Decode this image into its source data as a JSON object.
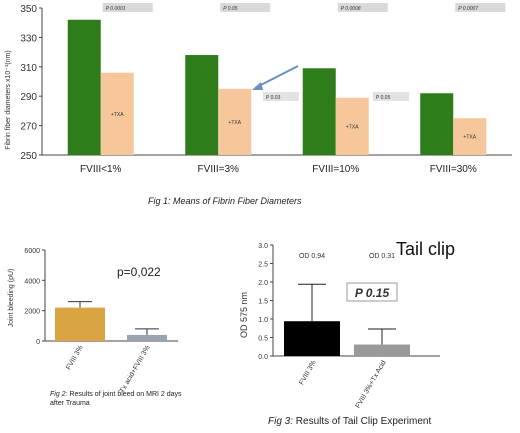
{
  "chart_data": [
    {
      "type": "bar",
      "categories": [
        "FVIII<1%",
        "FVIII=3%",
        "FVIII=10%",
        "FVIII=30%"
      ],
      "series": [
        {
          "values": [
            342,
            318,
            309,
            292
          ],
          "color": "#2e7d1a"
        },
        {
          "values": [
            306,
            295,
            289,
            275
          ],
          "color": "#f5c79a",
          "bar_label": "+TXA"
        }
      ],
      "ylabel": "Fibrin fiber diameters x10⁻³(nm)",
      "yticks": [
        250,
        270,
        290,
        310,
        330,
        350
      ],
      "ylim": [
        250,
        350
      ],
      "p_values": [
        "P 0.0001",
        "P 0.05",
        "P 0.0008",
        "P 0.0007"
      ],
      "extra_p_labels": [
        "P 0.03",
        "P 0.05"
      ],
      "caption_prefix": "Fig 1:",
      "caption_text": " Means of Fibrin Fiber Diameters"
    },
    {
      "type": "bar",
      "categories": [
        "FVIII 3%",
        "Tx acid+FVIII 3%"
      ],
      "values": [
        2200,
        400
      ],
      "errors": [
        2600,
        800
      ],
      "colors": [
        "#d9a441",
        "#9aa3ae"
      ],
      "ylabel": "Joint bleeding (pU)",
      "yticks": [
        0,
        2000,
        4000,
        6000
      ],
      "ylim": [
        0,
        6000
      ],
      "annotation": "p=0,022",
      "caption_prefix": "Fig 2:",
      "caption_text": " Results of joint bleed on MRI 2 days",
      "caption_line2": "after Trauma"
    },
    {
      "type": "bar",
      "title": "Tail clip",
      "categories": [
        "FVIII 3%",
        "FVIII 3%+Tx Acid"
      ],
      "values": [
        0.94,
        0.31
      ],
      "errors": [
        1.0,
        0.42
      ],
      "colors": [
        "#000000",
        "#9a9a9a"
      ],
      "ylabel": "OD 575 nm",
      "yticks": [
        "0.0",
        "0.5",
        "1.0",
        "1.5",
        "2.0",
        "2.5",
        "3.0"
      ],
      "ylim": [
        0,
        3
      ],
      "od_labels": [
        "OD 0.94",
        "OD 0.31"
      ],
      "p_box": "P 0.15",
      "caption_prefix": "Fig 3:",
      "caption_text": " Results of Tail Clip Experiment"
    }
  ]
}
